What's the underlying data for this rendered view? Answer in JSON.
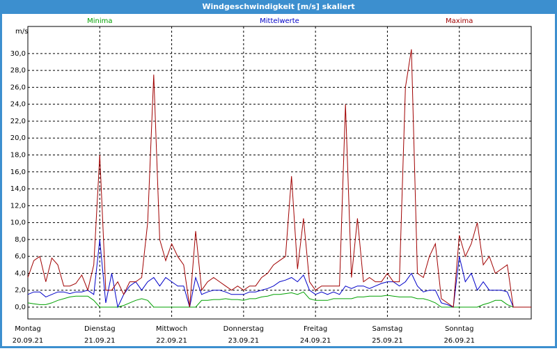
{
  "chart_data": {
    "type": "line",
    "title": "Windgeschwindigkeit [m/s] skaliert",
    "y_label": "m/s",
    "xlim": [
      0,
      168
    ],
    "ylim": [
      -1.4,
      33.2
    ],
    "grid": true,
    "xticks": [
      {
        "value": 0,
        "label": "Montag",
        "date": "20.09.21"
      },
      {
        "value": 24,
        "label": "Dienstag",
        "date": "21.09.21"
      },
      {
        "value": 48,
        "label": "Mittwoch",
        "date": "22.09.21"
      },
      {
        "value": 72,
        "label": "Donnerstag",
        "date": "23.09.21"
      },
      {
        "value": 96,
        "label": "Freitag",
        "date": "24.09.21"
      },
      {
        "value": 120,
        "label": "Samstag",
        "date": "25.09.21"
      },
      {
        "value": 144,
        "label": "Sonntag",
        "date": "26.09.21"
      }
    ],
    "yticks": [
      {
        "value": 0,
        "label": "0,0"
      },
      {
        "value": 2,
        "label": "2,0"
      },
      {
        "value": 4,
        "label": "4,0"
      },
      {
        "value": 6,
        "label": "6,0"
      },
      {
        "value": 8,
        "label": "8,0"
      },
      {
        "value": 10,
        "label": "10,0"
      },
      {
        "value": 12,
        "label": "12,0"
      },
      {
        "value": 14,
        "label": "14,0"
      },
      {
        "value": 16,
        "label": "16,0"
      },
      {
        "value": 18,
        "label": "18,0"
      },
      {
        "value": 20,
        "label": "20,0"
      },
      {
        "value": 22,
        "label": "22,0"
      },
      {
        "value": 24,
        "label": "24,0"
      },
      {
        "value": 26,
        "label": "26,0"
      },
      {
        "value": 28,
        "label": "28,0"
      },
      {
        "value": 30,
        "label": "30,0"
      }
    ],
    "x": [
      0,
      2,
      4,
      6,
      8,
      10,
      12,
      14,
      16,
      18,
      20,
      22,
      24,
      26,
      28,
      30,
      32,
      34,
      36,
      38,
      40,
      42,
      44,
      46,
      48,
      50,
      52,
      54,
      56,
      58,
      60,
      62,
      64,
      66,
      68,
      70,
      72,
      74,
      76,
      78,
      80,
      82,
      84,
      86,
      88,
      90,
      92,
      94,
      96,
      98,
      100,
      102,
      104,
      106,
      108,
      110,
      112,
      114,
      116,
      118,
      120,
      122,
      124,
      126,
      128,
      130,
      132,
      134,
      136,
      138,
      140,
      142,
      144,
      146,
      148,
      150,
      152,
      154,
      156,
      158,
      160,
      162,
      164,
      166,
      168
    ],
    "series": [
      {
        "name": "Minima",
        "color": "#00a000",
        "values": [
          0.5,
          0.4,
          0.3,
          0.3,
          0.5,
          0.8,
          1,
          1.2,
          1.3,
          1.3,
          1.3,
          0.8,
          0,
          0,
          0,
          0,
          0.2,
          0.5,
          0.8,
          1,
          0.8,
          0,
          0,
          0,
          0,
          0,
          0,
          0,
          0,
          0.8,
          0.8,
          0.9,
          0.9,
          1,
          0.9,
          0.9,
          0.8,
          1,
          1,
          1.2,
          1.3,
          1.5,
          1.5,
          1.6,
          1.7,
          1.5,
          1.8,
          1,
          0.8,
          0.8,
          0.8,
          1,
          1,
          1,
          1,
          1.2,
          1.2,
          1.3,
          1.3,
          1.3,
          1.4,
          1.3,
          1.2,
          1.2,
          1.2,
          1,
          1,
          0.8,
          0.5,
          0,
          0,
          0,
          0,
          0,
          0,
          0,
          0.3,
          0.5,
          0.8,
          0.8,
          0.3,
          0,
          0,
          0,
          0
        ]
      },
      {
        "name": "Mittelwerte",
        "color": "#0000c8",
        "values": [
          1.5,
          1.8,
          1.8,
          1.2,
          1.5,
          1.8,
          1.8,
          1.6,
          1.8,
          1.8,
          2,
          1.5,
          8,
          0.5,
          4,
          0,
          1.5,
          2.5,
          3,
          2,
          3,
          3.5,
          2.5,
          3.5,
          3,
          2.5,
          2.5,
          0,
          3.5,
          1.5,
          1.8,
          2,
          2,
          1.8,
          1.5,
          1.5,
          1.5,
          1.8,
          1.8,
          2,
          2.2,
          2.5,
          3,
          3.2,
          3.5,
          3,
          3.8,
          2,
          1.5,
          1.8,
          1.5,
          1.8,
          1.5,
          2.5,
          2.2,
          2.5,
          2.5,
          2.2,
          2.5,
          2.8,
          3,
          3,
          2.5,
          3,
          4,
          2.5,
          1.8,
          2,
          2,
          0.5,
          0.3,
          0,
          6,
          3,
          4,
          2,
          3,
          2,
          2,
          2,
          1.8,
          0,
          0,
          0,
          0
        ]
      },
      {
        "name": "Maxima",
        "color": "#a00000",
        "values": [
          3.5,
          5.5,
          6,
          3,
          5.8,
          5,
          2.5,
          2.5,
          2.8,
          3.8,
          2,
          5,
          18,
          2,
          2,
          3,
          1.5,
          3,
          3,
          3.5,
          10,
          27.5,
          8,
          5.5,
          7.5,
          6,
          5,
          0,
          9,
          2,
          3,
          3.5,
          3,
          2.5,
          2,
          2.5,
          2,
          2.5,
          2.5,
          3.5,
          4,
          5,
          5.5,
          6,
          15.5,
          4.5,
          10.5,
          3,
          2,
          2.5,
          2.5,
          2.5,
          2.5,
          24,
          3.5,
          10.5,
          3,
          3.5,
          3,
          3,
          4,
          3,
          3,
          26,
          30.5,
          4,
          3.5,
          6,
          7.5,
          1,
          0.5,
          0,
          8.5,
          6,
          7.5,
          10,
          5,
          6,
          4,
          4.5,
          5,
          0,
          0,
          0,
          0
        ]
      }
    ]
  }
}
